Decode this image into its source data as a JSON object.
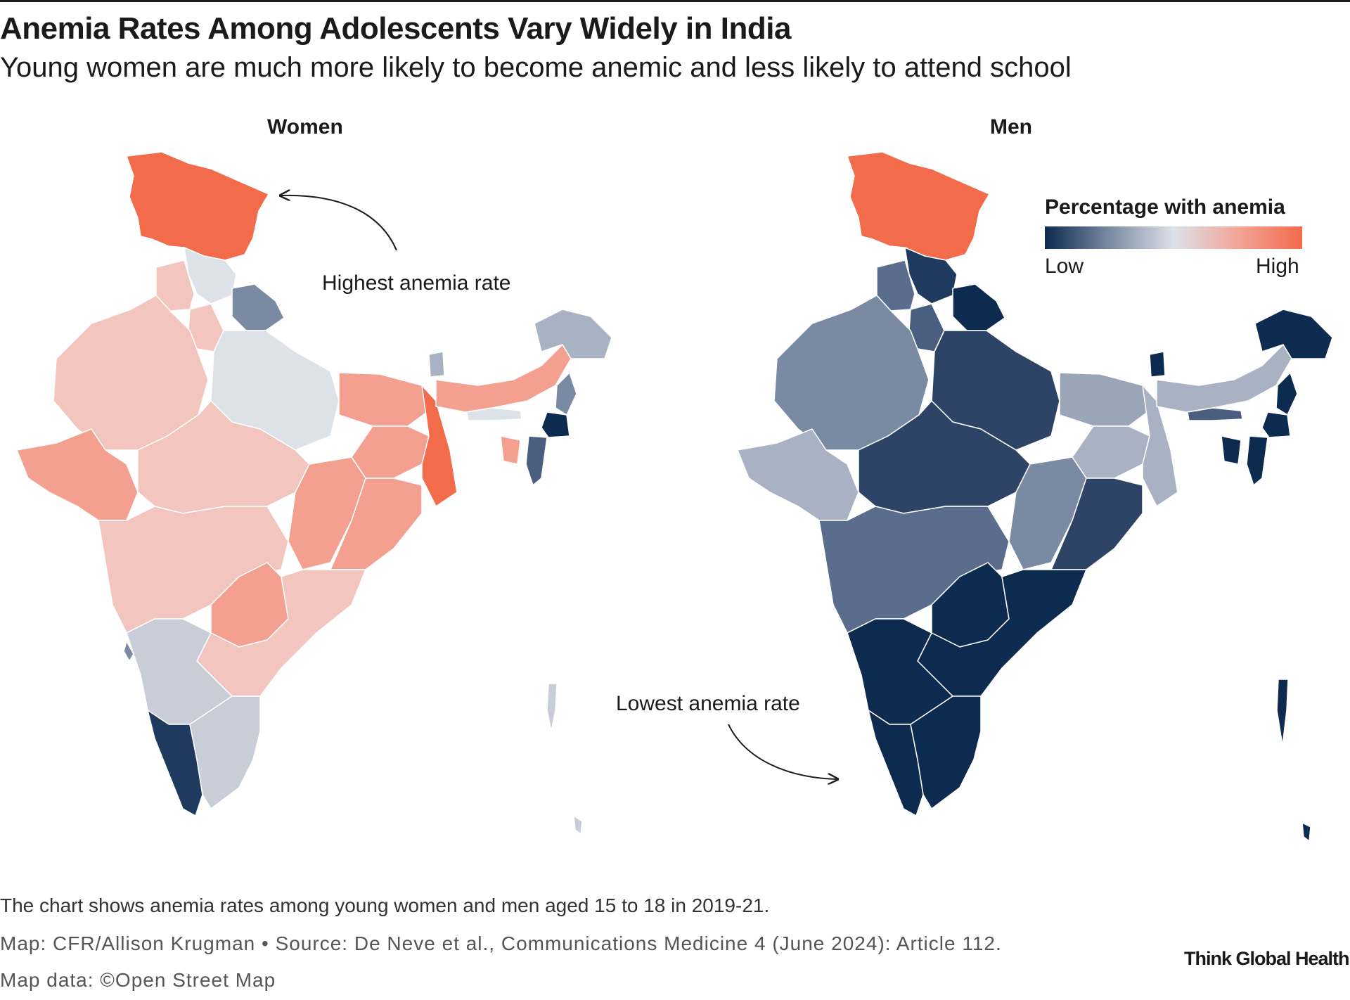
{
  "title": "Anemia Rates Among Adolescents Vary Widely in India",
  "subtitle": "Young women are much more likely to become anemic and less likely to attend school",
  "panels": {
    "women": "Women",
    "men": "Men"
  },
  "annotations": {
    "highest": "Highest anemia rate",
    "lowest": "Lowest anemia rate"
  },
  "legend": {
    "title": "Percentage with anemia",
    "low": "Low",
    "high": "High",
    "colors": [
      "#0d2a4f",
      "#7a8aa3",
      "#dde1e8",
      "#f2a597",
      "#f26b4b"
    ]
  },
  "footer": {
    "note": "The chart shows anemia rates among young women and men aged 15 to 18 in 2019-21.",
    "credit": "Map: CFR/Allison Krugman • Source: De Neve et al., Communications Medicine 4 (June 2024): Article 112.",
    "mapdata": "Map data: ©Open Street Map",
    "brand": "Think Global Health"
  }
}
